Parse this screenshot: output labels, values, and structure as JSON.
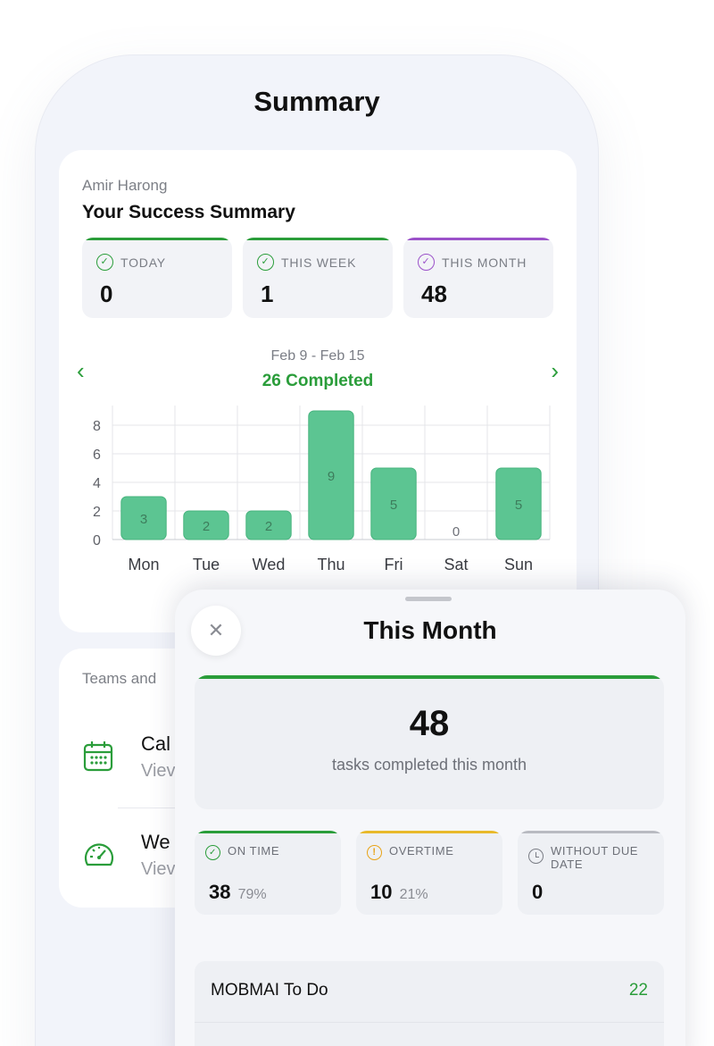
{
  "page": {
    "title": "Summary"
  },
  "summary": {
    "user_name": "Amir Harong",
    "heading": "Your Success Summary",
    "stats": [
      {
        "label": "TODAY",
        "value": "0",
        "accent": "#2a9d3a"
      },
      {
        "label": "THIS WEEK",
        "value": "1",
        "accent": "#2a9d3a"
      },
      {
        "label": "THIS MONTH",
        "value": "48",
        "accent": "#9b51c9"
      }
    ],
    "week_range": "Feb 9 - Feb 15",
    "week_completed": "26 Completed",
    "prev_icon": "chevron-left-icon",
    "next_icon": "chevron-right-icon"
  },
  "chart_data": {
    "type": "bar",
    "categories": [
      "Mon",
      "Tue",
      "Wed",
      "Thu",
      "Fri",
      "Sat",
      "Sun"
    ],
    "values": [
      3,
      2,
      2,
      9,
      5,
      0,
      5
    ],
    "y_ticks": [
      0,
      2,
      4,
      6,
      8
    ],
    "ylim": [
      0,
      9
    ],
    "bar_color": "#5cc592",
    "grid": true
  },
  "teams": {
    "title": "Teams and",
    "items": [
      {
        "name": "Cal",
        "sub": "Viev",
        "icon": "calendar-icon"
      },
      {
        "name": "We",
        "sub": "Viev",
        "icon": "speedometer-icon"
      }
    ]
  },
  "sheet": {
    "title": "This Month",
    "close_icon": "close-icon",
    "total_value": "48",
    "total_caption": "tasks completed this month",
    "on_time": {
      "label": "ON TIME",
      "value": "38",
      "pct": "79%",
      "accent": "#2a9d3a"
    },
    "overtime": {
      "label": "OVERTIME",
      "value": "10",
      "pct": "21%",
      "accent": "#e8b92a"
    },
    "no_due": {
      "label_1": "WITHOUT DUE",
      "label_2": "DATE",
      "value": "0",
      "accent": "#b8bac1"
    },
    "list": [
      {
        "name": "MOBMAI To Do",
        "count": "22"
      },
      {
        "name": "",
        "count": ""
      }
    ]
  }
}
